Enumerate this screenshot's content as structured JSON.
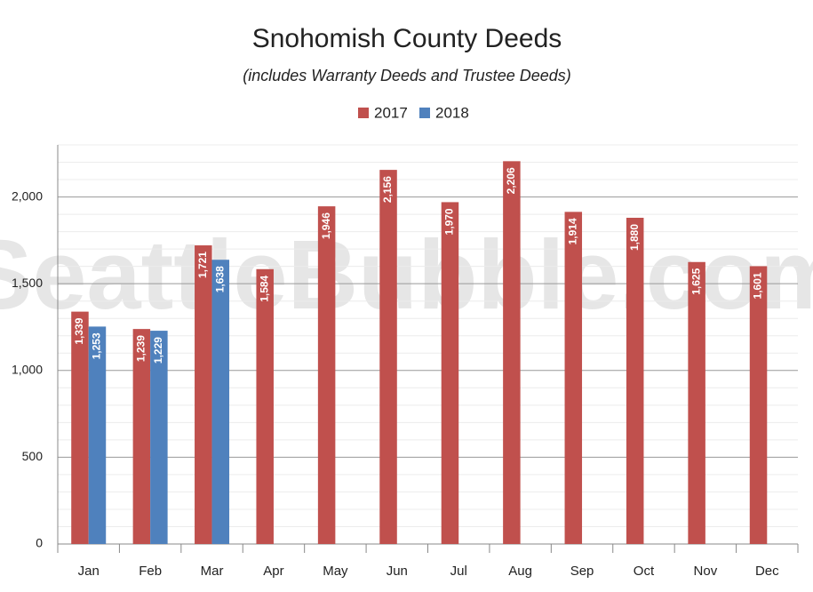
{
  "chart_data": {
    "type": "bar",
    "title": "Snohomish County Deeds",
    "subtitle": "(includes Warranty Deeds and Trustee Deeds)",
    "watermark": "SeattleBubble.com",
    "categories": [
      "Jan",
      "Feb",
      "Mar",
      "Apr",
      "May",
      "Jun",
      "Jul",
      "Aug",
      "Sep",
      "Oct",
      "Nov",
      "Dec"
    ],
    "series": [
      {
        "name": "2017",
        "color": "#c0504d",
        "values": [
          1339,
          1239,
          1721,
          1584,
          1946,
          2156,
          1970,
          2206,
          1914,
          1880,
          1625,
          1601
        ],
        "value_labels": [
          "1,339",
          "1,239",
          "1,721",
          "1,584",
          "1,946",
          "2,156",
          "1,970",
          "2,206",
          "1,914",
          "1,880",
          "1,625",
          "1,601"
        ]
      },
      {
        "name": "2018",
        "color": "#4f81bd",
        "values": [
          1253,
          1229,
          1638,
          null,
          null,
          null,
          null,
          null,
          null,
          null,
          null,
          null
        ],
        "value_labels": [
          "1,253",
          "1,229",
          "1,638",
          null,
          null,
          null,
          null,
          null,
          null,
          null,
          null,
          null
        ]
      }
    ],
    "ylim": [
      0,
      2300
    ],
    "yticks": [
      0,
      500,
      {
        "value": 1000,
        "label": "1,000"
      },
      {
        "value": 1500,
        "label": "1,500"
      },
      {
        "value": 2000,
        "label": "2,000"
      }
    ],
    "grid": true,
    "legend": "top"
  }
}
